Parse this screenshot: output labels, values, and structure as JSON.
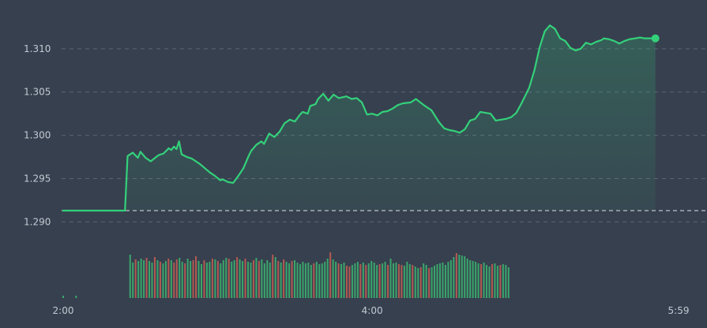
{
  "chart_data": {
    "type": "line",
    "subtype": "intraday-price-with-volume",
    "x_ticks": [
      "2:00",
      "4:00",
      "5:59"
    ],
    "y_ticks": [
      "1.310",
      "1.305",
      "1.300",
      "1.295",
      "1.290"
    ],
    "y_tick_values": [
      1.31,
      1.305,
      1.3,
      1.295,
      1.29
    ],
    "ylim": [
      1.2873,
      1.3129
    ],
    "xlim_minutes": [
      0,
      239
    ],
    "reference_line": 1.2913,
    "grid": "horizontal dashed",
    "colors": {
      "background": "#37404f",
      "line": "#33d17a",
      "area_fill": "#33d17a",
      "grid": "#5a6473",
      "reference": "#ffffff",
      "volume_up": "#3aa66b",
      "volume_down": "#b35a52",
      "tick_text": "#c3c9d2"
    },
    "price": {
      "x": [
        0,
        7,
        14,
        21,
        24,
        25,
        27,
        29,
        30,
        32,
        34,
        37,
        39,
        41,
        42,
        43,
        44,
        45,
        46,
        48,
        50,
        53,
        55,
        57,
        59,
        61,
        62,
        64,
        66,
        68,
        70,
        72,
        73,
        75,
        77,
        78,
        80,
        82,
        84,
        86,
        88,
        90,
        92,
        93,
        95,
        96,
        98,
        99,
        101,
        103,
        105,
        107,
        110,
        112,
        114,
        116,
        118,
        120,
        122,
        124,
        126,
        128,
        130,
        132,
        135,
        137,
        140,
        143,
        146,
        148,
        150,
        152,
        154,
        156,
        158,
        160,
        162,
        164,
        166,
        168,
        170,
        172,
        174,
        176,
        178,
        181,
        183,
        185,
        187,
        189,
        191,
        193,
        195,
        197,
        199,
        201,
        203,
        205,
        207,
        209,
        210,
        212,
        214,
        216,
        218,
        220,
        222,
        224,
        226,
        228,
        230
      ],
      "y": [
        1.2913,
        1.2913,
        1.2913,
        1.2913,
        1.2913,
        1.2976,
        1.298,
        1.2974,
        1.2981,
        1.2974,
        1.297,
        1.2977,
        1.2979,
        1.2985,
        1.2983,
        1.2987,
        1.2984,
        1.2993,
        1.2978,
        1.2975,
        1.2973,
        1.2967,
        1.2962,
        1.2957,
        1.2953,
        1.2948,
        1.2949,
        1.2946,
        1.2945,
        1.2953,
        1.2962,
        1.2976,
        1.2982,
        1.2989,
        1.2993,
        1.299,
        1.3002,
        1.2998,
        1.3004,
        1.3014,
        1.3018,
        1.3016,
        1.3024,
        1.3027,
        1.3025,
        1.3034,
        1.3036,
        1.3042,
        1.3048,
        1.304,
        1.3047,
        1.3043,
        1.3045,
        1.3042,
        1.3043,
        1.3038,
        1.3024,
        1.3025,
        1.3023,
        1.3027,
        1.3028,
        1.3031,
        1.3035,
        1.3037,
        1.3038,
        1.3042,
        1.3035,
        1.3029,
        1.3015,
        1.3008,
        1.3006,
        1.3005,
        1.3003,
        1.3007,
        1.3017,
        1.3019,
        1.3027,
        1.3026,
        1.3025,
        1.3017,
        1.3018,
        1.3019,
        1.3021,
        1.3026,
        1.3037,
        1.3055,
        1.3075,
        1.3101,
        1.312,
        1.3127,
        1.3123,
        1.3112,
        1.3109,
        1.3101,
        1.3098,
        1.31,
        1.3107,
        1.3105,
        1.3108,
        1.311,
        1.3112,
        1.3111,
        1.3109,
        1.3106,
        1.3109,
        1.3111,
        1.3112,
        1.3113,
        1.3112,
        1.3112,
        1.3112
      ]
    },
    "last_point": {
      "x": 230,
      "y": 1.3112
    },
    "volume": {
      "x_start": 26,
      "x_step": 1.065,
      "values": [
        55,
        45,
        49,
        47,
        50,
        48,
        51,
        47,
        45,
        52,
        48,
        46,
        44,
        47,
        50,
        48,
        45,
        49,
        51,
        46,
        44,
        50,
        47,
        48,
        53,
        47,
        43,
        48,
        45,
        46,
        50,
        49,
        47,
        44,
        48,
        51,
        50,
        46,
        48,
        52,
        49,
        47,
        50,
        46,
        45,
        48,
        51,
        47,
        49,
        44,
        48,
        45,
        55,
        52,
        47,
        45,
        49,
        46,
        44,
        47,
        48,
        45,
        43,
        46,
        44,
        45,
        42,
        44,
        46,
        43,
        44,
        46,
        50,
        58,
        49,
        46,
        44,
        43,
        45,
        41,
        40,
        42,
        44,
        46,
        43,
        45,
        42,
        44,
        47,
        45,
        42,
        43,
        44,
        46,
        42,
        50,
        44,
        45,
        43,
        42,
        41,
        46,
        43,
        42,
        40,
        38,
        39,
        44,
        42,
        38,
        39,
        41,
        43,
        44,
        45,
        42,
        46,
        48,
        52,
        57,
        55,
        54,
        53,
        50,
        48,
        47,
        46,
        44,
        43,
        45,
        42,
        40,
        43,
        44,
        41,
        42,
        43,
        42,
        39
      ],
      "up": [
        1,
        1,
        0,
        1,
        1,
        1,
        0,
        1,
        1,
        0,
        1,
        0,
        1,
        1,
        0,
        1,
        0,
        0,
        1,
        1,
        0,
        1,
        1,
        0,
        0,
        1,
        1,
        0,
        1,
        1,
        0,
        1,
        0,
        1,
        1,
        1,
        0,
        1,
        1,
        0,
        1,
        1,
        0,
        1,
        1,
        0,
        1,
        0,
        1,
        1,
        1,
        1,
        0,
        1,
        0,
        1,
        0,
        1,
        1,
        0,
        1,
        1,
        1,
        1,
        1,
        1,
        1,
        0,
        1,
        1,
        1,
        1,
        1,
        0,
        1,
        1,
        0,
        1,
        1,
        0,
        0,
        1,
        1,
        1,
        0,
        1,
        0,
        1,
        1,
        1,
        1,
        0,
        1,
        1,
        0,
        1,
        1,
        1,
        0,
        0,
        1,
        1,
        1,
        0,
        1,
        1,
        0,
        1,
        1,
        0,
        1,
        1,
        1,
        1,
        1,
        1,
        1,
        1,
        1,
        0,
        1,
        1,
        1,
        1,
        1,
        1,
        1,
        1,
        0,
        1,
        1,
        1,
        0,
        1,
        1,
        0,
        1,
        1,
        1
      ]
    },
    "stray_volume_marks": [
      {
        "x": 0,
        "v": 3
      },
      {
        "x": 5,
        "v": 3
      }
    ]
  }
}
